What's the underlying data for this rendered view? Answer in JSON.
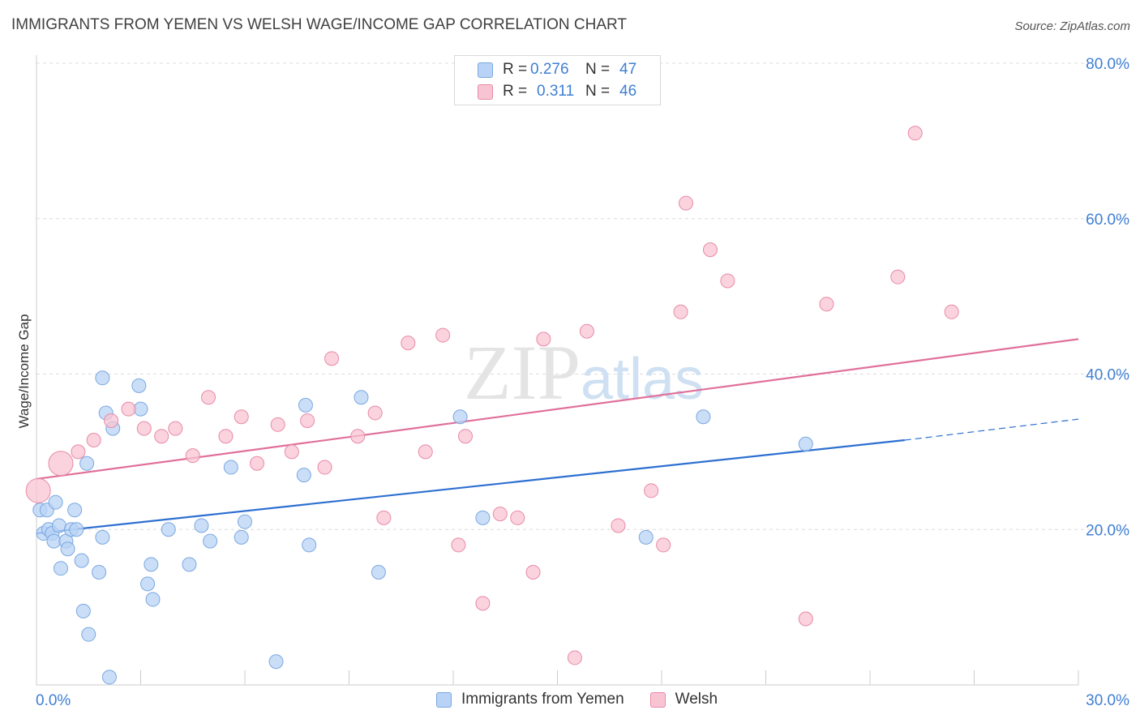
{
  "chart_data": {
    "type": "scatter",
    "title": "IMMIGRANTS FROM YEMEN VS WELSH WAGE/INCOME GAP CORRELATION CHART",
    "source": "Source: ZipAtlas.com",
    "xlabel": "",
    "ylabel": "Wage/Income Gap",
    "xlim": [
      0,
      30
    ],
    "ylim": [
      0,
      80
    ],
    "x_tick_labels": [
      "0.0%",
      "30.0%"
    ],
    "y_ticks": [
      20,
      40,
      60,
      80
    ],
    "y_tick_labels": [
      "20.0%",
      "40.0%",
      "60.0%",
      "80.0%"
    ],
    "watermark": "ZIPatlas",
    "legend": {
      "r_label": "R =",
      "n_label": "N =",
      "entries": [
        {
          "name": "Immigrants from Yemen",
          "r": "0.276",
          "n": "47"
        },
        {
          "name": "Welsh",
          "r": "0.311",
          "n": "46"
        }
      ]
    },
    "colors": {
      "blue_fill": "#b8d3f5",
      "blue_stroke": "#7aa8e0",
      "blue_line": "#2d6fd1",
      "pink_fill": "#f8c4d3",
      "pink_stroke": "#e88aa6",
      "pink_line": "#e0709a",
      "axis_text": "#3f7fd4"
    },
    "series": [
      {
        "name": "Immigrants from Yemen",
        "trend": {
          "x0": 0,
          "y0": 19.5,
          "x1": 25,
          "y1": 31.5,
          "dash_x1": 30,
          "dash_y1": 34.2
        },
        "points": [
          {
            "x": 0.1,
            "y": 22.5
          },
          {
            "x": 0.2,
            "y": 19.5
          },
          {
            "x": 0.3,
            "y": 22.5
          },
          {
            "x": 0.35,
            "y": 20.0
          },
          {
            "x": 0.45,
            "y": 19.5
          },
          {
            "x": 0.5,
            "y": 18.5
          },
          {
            "x": 0.55,
            "y": 23.5
          },
          {
            "x": 0.65,
            "y": 20.5
          },
          {
            "x": 0.7,
            "y": 15.0
          },
          {
            "x": 0.85,
            "y": 18.5
          },
          {
            "x": 0.9,
            "y": 17.5
          },
          {
            "x": 1.0,
            "y": 20.0
          },
          {
            "x": 1.1,
            "y": 22.5
          },
          {
            "x": 1.15,
            "y": 20.0
          },
          {
            "x": 1.3,
            "y": 16.0
          },
          {
            "x": 1.35,
            "y": 9.5
          },
          {
            "x": 1.45,
            "y": 28.5
          },
          {
            "x": 1.5,
            "y": 6.5
          },
          {
            "x": 1.8,
            "y": 14.5
          },
          {
            "x": 1.9,
            "y": 19.0
          },
          {
            "x": 1.9,
            "y": 39.5
          },
          {
            "x": 2.0,
            "y": 35.0
          },
          {
            "x": 2.1,
            "y": 1.0
          },
          {
            "x": 2.2,
            "y": 33.0
          },
          {
            "x": 2.95,
            "y": 38.5
          },
          {
            "x": 3.0,
            "y": 35.5
          },
          {
            "x": 3.2,
            "y": 13.0
          },
          {
            "x": 3.3,
            "y": 15.5
          },
          {
            "x": 3.35,
            "y": 11.0
          },
          {
            "x": 3.8,
            "y": 20.0
          },
          {
            "x": 4.4,
            "y": 15.5
          },
          {
            "x": 4.75,
            "y": 20.5
          },
          {
            "x": 5.0,
            "y": 18.5
          },
          {
            "x": 5.6,
            "y": 28.0
          },
          {
            "x": 5.9,
            "y": 19.0
          },
          {
            "x": 6.0,
            "y": 21.0
          },
          {
            "x": 6.9,
            "y": 3.0
          },
          {
            "x": 7.7,
            "y": 27.0
          },
          {
            "x": 7.75,
            "y": 36.0
          },
          {
            "x": 7.85,
            "y": 18.0
          },
          {
            "x": 9.35,
            "y": 37.0
          },
          {
            "x": 9.85,
            "y": 14.5
          },
          {
            "x": 12.2,
            "y": 34.5
          },
          {
            "x": 12.85,
            "y": 21.5
          },
          {
            "x": 17.55,
            "y": 19.0
          },
          {
            "x": 19.2,
            "y": 34.5
          },
          {
            "x": 22.15,
            "y": 31.0
          }
        ]
      },
      {
        "name": "Welsh",
        "trend": {
          "x0": 0,
          "y0": 26.5,
          "x1": 30,
          "y1": 44.5
        },
        "points": [
          {
            "x": 0.05,
            "y": 25.0,
            "big": true
          },
          {
            "x": 0.7,
            "y": 28.5,
            "big": true
          },
          {
            "x": 1.2,
            "y": 30.0
          },
          {
            "x": 1.65,
            "y": 31.5
          },
          {
            "x": 2.15,
            "y": 34.0
          },
          {
            "x": 2.65,
            "y": 35.5
          },
          {
            "x": 3.1,
            "y": 33.0
          },
          {
            "x": 3.6,
            "y": 32.0
          },
          {
            "x": 4.0,
            "y": 33.0
          },
          {
            "x": 4.5,
            "y": 29.5
          },
          {
            "x": 4.95,
            "y": 37.0
          },
          {
            "x": 5.45,
            "y": 32.0
          },
          {
            "x": 5.9,
            "y": 34.5
          },
          {
            "x": 6.35,
            "y": 28.5
          },
          {
            "x": 6.95,
            "y": 33.5
          },
          {
            "x": 7.35,
            "y": 30.0
          },
          {
            "x": 7.8,
            "y": 34.0
          },
          {
            "x": 8.3,
            "y": 28.0
          },
          {
            "x": 8.5,
            "y": 42.0
          },
          {
            "x": 9.25,
            "y": 32.0
          },
          {
            "x": 9.75,
            "y": 35.0
          },
          {
            "x": 10.0,
            "y": 21.5
          },
          {
            "x": 10.7,
            "y": 44.0
          },
          {
            "x": 11.2,
            "y": 30.0
          },
          {
            "x": 11.7,
            "y": 45.0
          },
          {
            "x": 12.15,
            "y": 18.0
          },
          {
            "x": 12.35,
            "y": 32.0
          },
          {
            "x": 12.85,
            "y": 10.5
          },
          {
            "x": 13.35,
            "y": 22.0
          },
          {
            "x": 13.85,
            "y": 21.5
          },
          {
            "x": 14.3,
            "y": 14.5
          },
          {
            "x": 14.6,
            "y": 44.5
          },
          {
            "x": 15.5,
            "y": 3.5
          },
          {
            "x": 15.85,
            "y": 45.5
          },
          {
            "x": 16.75,
            "y": 20.5
          },
          {
            "x": 17.7,
            "y": 25.0
          },
          {
            "x": 18.05,
            "y": 18.0
          },
          {
            "x": 18.55,
            "y": 48.0
          },
          {
            "x": 18.7,
            "y": 62.0
          },
          {
            "x": 19.4,
            "y": 56.0
          },
          {
            "x": 19.9,
            "y": 52.0
          },
          {
            "x": 22.15,
            "y": 8.5
          },
          {
            "x": 22.75,
            "y": 49.0
          },
          {
            "x": 24.8,
            "y": 52.5
          },
          {
            "x": 25.3,
            "y": 71.0
          },
          {
            "x": 26.35,
            "y": 48.0
          }
        ]
      }
    ]
  }
}
